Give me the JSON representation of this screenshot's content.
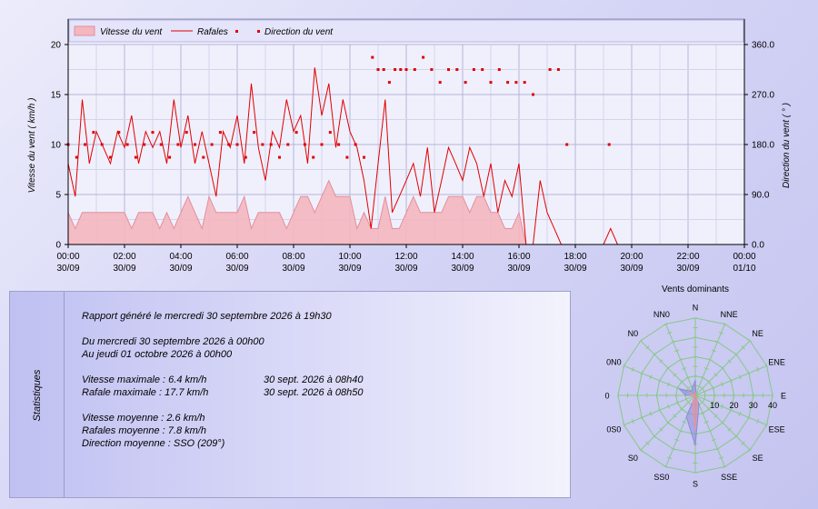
{
  "chart_data": [
    {
      "type": "line",
      "legend": [
        "Vitesse du vent",
        "Rafales",
        "Direction du vent"
      ],
      "legend_position": "top-left",
      "ylabel": "Vitesse du vent  ( km/h )",
      "y2label": "Direction du vent  ( ° )",
      "ylim": [
        0,
        20
      ],
      "y2lim": [
        0,
        360
      ],
      "y_ticks": [
        "0",
        "5",
        "10",
        "15",
        "20"
      ],
      "y2_ticks": [
        "0.0",
        "90.0",
        "180.0",
        "270.0",
        "360.0"
      ],
      "x_ticks": [
        {
          "time": "00:00",
          "date": "30/09"
        },
        {
          "time": "02:00",
          "date": "30/09"
        },
        {
          "time": "04:00",
          "date": "30/09"
        },
        {
          "time": "06:00",
          "date": "30/09"
        },
        {
          "time": "08:00",
          "date": "30/09"
        },
        {
          "time": "10:00",
          "date": "30/09"
        },
        {
          "time": "12:00",
          "date": "30/09"
        },
        {
          "time": "14:00",
          "date": "30/09"
        },
        {
          "time": "16:00",
          "date": "30/09"
        },
        {
          "time": "18:00",
          "date": "30/09"
        },
        {
          "time": "20:00",
          "date": "30/09"
        },
        {
          "time": "22:00",
          "date": "30/09"
        },
        {
          "time": "00:00",
          "date": "01/10"
        }
      ],
      "grid": true,
      "series": [
        {
          "name": "Vitesse du vent",
          "x_hours": [
            0,
            0.25,
            0.5,
            0.75,
            1,
            1.25,
            1.5,
            1.75,
            2,
            2.25,
            2.5,
            2.75,
            3,
            3.25,
            3.5,
            3.75,
            4,
            4.25,
            4.5,
            4.75,
            5,
            5.25,
            5.5,
            5.75,
            6,
            6.25,
            6.5,
            6.75,
            7,
            7.25,
            7.5,
            7.75,
            8,
            8.25,
            8.5,
            8.75,
            9,
            9.25,
            9.5,
            9.75,
            10,
            10.25,
            10.5,
            10.75,
            11,
            11.25,
            11.5,
            11.75,
            12,
            12.25,
            12.5,
            12.75,
            13,
            13.25,
            13.5,
            13.75,
            14,
            14.25,
            14.5,
            14.75,
            15,
            15.25,
            15.5,
            15.75,
            16,
            16.25,
            16.5,
            16.75,
            17,
            17.25,
            17.5,
            17.75,
            18
          ],
          "values": [
            3.2,
            1.6,
            3.2,
            3.2,
            3.2,
            3.2,
            3.2,
            3.2,
            3.2,
            1.6,
            3.2,
            3.2,
            3.2,
            1.6,
            3.2,
            1.6,
            3.2,
            4.8,
            3.2,
            1.6,
            4.8,
            3.2,
            3.2,
            3.2,
            3.2,
            4.8,
            1.6,
            3.2,
            3.2,
            3.2,
            3.2,
            1.6,
            3.2,
            4.8,
            4.8,
            3.2,
            4.8,
            6.4,
            4.8,
            4.8,
            4.8,
            1.6,
            3.2,
            1.6,
            1.6,
            4.8,
            1.6,
            1.6,
            3.2,
            4.8,
            3.2,
            3.2,
            3.2,
            3.2,
            4.8,
            4.8,
            4.8,
            3.2,
            4.8,
            4.8,
            3.2,
            3.2,
            1.6,
            1.6,
            3.2,
            0,
            0,
            0,
            0,
            0,
            0,
            0,
            0
          ]
        },
        {
          "name": "Rafales",
          "x_hours": [
            0,
            0.25,
            0.5,
            0.75,
            1,
            1.25,
            1.5,
            1.75,
            2,
            2.25,
            2.5,
            2.75,
            3,
            3.25,
            3.5,
            3.75,
            4,
            4.25,
            4.5,
            4.75,
            5,
            5.25,
            5.5,
            5.75,
            6,
            6.25,
            6.5,
            6.75,
            7,
            7.25,
            7.5,
            7.75,
            8,
            8.25,
            8.5,
            8.75,
            9,
            9.25,
            9.5,
            9.75,
            10,
            10.25,
            10.5,
            10.75,
            11,
            11.25,
            11.5,
            11.75,
            12,
            12.25,
            12.5,
            12.75,
            13,
            13.25,
            13.5,
            13.75,
            14,
            14.25,
            14.5,
            14.75,
            15,
            15.25,
            15.5,
            15.75,
            16,
            16.25,
            16.5,
            16.75,
            17,
            17.25,
            17.5,
            17.75,
            18,
            18.5,
            19,
            19.25,
            19.5
          ],
          "values": [
            8.1,
            4.8,
            14.5,
            8.1,
            11.3,
            9.7,
            8.1,
            11.3,
            9.7,
            12.9,
            8.1,
            11.3,
            9.7,
            11.3,
            8.1,
            14.5,
            9.7,
            12.9,
            8.1,
            11.3,
            8.1,
            4.8,
            11.3,
            9.7,
            12.9,
            8.1,
            16.1,
            9.7,
            6.4,
            11.3,
            9.7,
            14.5,
            11.3,
            12.9,
            8.1,
            17.7,
            12.9,
            16.1,
            9.7,
            14.5,
            11.3,
            9.7,
            6.4,
            1.6,
            8.1,
            14.5,
            3.2,
            4.8,
            6.4,
            8.1,
            4.8,
            9.7,
            3.2,
            6.4,
            9.7,
            8.1,
            6.4,
            9.7,
            8.1,
            4.8,
            8.1,
            3.2,
            6.4,
            4.8,
            8.1,
            0,
            0,
            6.4,
            3.2,
            1.6,
            0,
            0,
            0,
            0,
            0,
            1.6,
            0
          ]
        },
        {
          "name": "Direction du vent",
          "x_hours": [
            0,
            0.3,
            0.6,
            0.9,
            1.2,
            1.5,
            1.8,
            2.1,
            2.4,
            2.7,
            3.0,
            3.3,
            3.6,
            3.9,
            4.2,
            4.5,
            4.8,
            5.1,
            5.4,
            5.7,
            6.0,
            6.3,
            6.6,
            6.9,
            7.2,
            7.5,
            7.8,
            8.1,
            8.4,
            8.7,
            9.0,
            9.3,
            9.6,
            9.9,
            10.2,
            10.5,
            10.8,
            11.0,
            11.2,
            11.4,
            11.6,
            11.8,
            12.0,
            12.3,
            12.6,
            12.9,
            13.2,
            13.5,
            13.8,
            14.1,
            14.4,
            14.7,
            15.0,
            15.3,
            15.6,
            15.9,
            16.2,
            16.5,
            17.1,
            17.4,
            17.7,
            19.2
          ],
          "values": [
            180,
            157,
            180,
            202,
            180,
            157,
            202,
            180,
            157,
            180,
            202,
            180,
            157,
            180,
            202,
            180,
            157,
            180,
            202,
            180,
            180,
            157,
            202,
            180,
            180,
            157,
            180,
            202,
            180,
            157,
            180,
            202,
            180,
            157,
            180,
            157,
            337,
            315,
            315,
            292,
            315,
            315,
            315,
            315,
            337,
            315,
            292,
            315,
            315,
            292,
            315,
            315,
            292,
            315,
            292,
            292,
            292,
            270,
            315,
            315,
            180,
            180
          ]
        }
      ]
    },
    {
      "type": "radar",
      "title": "Vents dominants",
      "directions": [
        "N",
        "NNE",
        "NE",
        "ENE",
        "E",
        "ESE",
        "SE",
        "SSE",
        "S",
        "SS0",
        "S0",
        "0S0",
        "0",
        "0N0",
        "N0",
        "NN0"
      ],
      "radial_ticks": [
        "10",
        "20",
        "30",
        "40"
      ],
      "rlim": [
        0,
        40
      ],
      "series": [
        {
          "name": "Vitesse du vent",
          "values": [
            2,
            0,
            0,
            0,
            0,
            0,
            0,
            3,
            18,
            4,
            0,
            0,
            2,
            3,
            0,
            1
          ]
        },
        {
          "name": "Rafales",
          "values": [
            8,
            1,
            0,
            0,
            0,
            0,
            0,
            5,
            26,
            12,
            0,
            0,
            5,
            9,
            3,
            4
          ]
        }
      ]
    }
  ],
  "stats": {
    "side_label": "Statistiques",
    "generated": "Rapport généré le mercredi 30 septembre 2026 à 19h30",
    "period_from": "Du mercredi 30 septembre 2026 à 00h00",
    "period_to": "Au jeudi 01 octobre 2026 à 00h00",
    "max_speed_label": "Vitesse maximale : 6.4 km/h",
    "max_speed_when": "30 sept. 2026 à 08h40",
    "max_gust_label": "Rafale maximale : 17.7 km/h",
    "max_gust_when": "30 sept. 2026 à 08h50",
    "avg_speed": "Vitesse moyenne : 2.6 km/h",
    "avg_gust": "Rafales moyenne : 7.8 km/h",
    "avg_direction": "Direction moyenne : SSO (209°)"
  },
  "colors": {
    "speed_fill": "#f4b6bf",
    "speed_stroke": "#e0909c",
    "gust_line": "#e00000",
    "direction_marker": "#e00000",
    "rose_speed": "#ef8f9f",
    "rose_gust": "#8c8cd8",
    "rose_grid": "#88c888"
  }
}
